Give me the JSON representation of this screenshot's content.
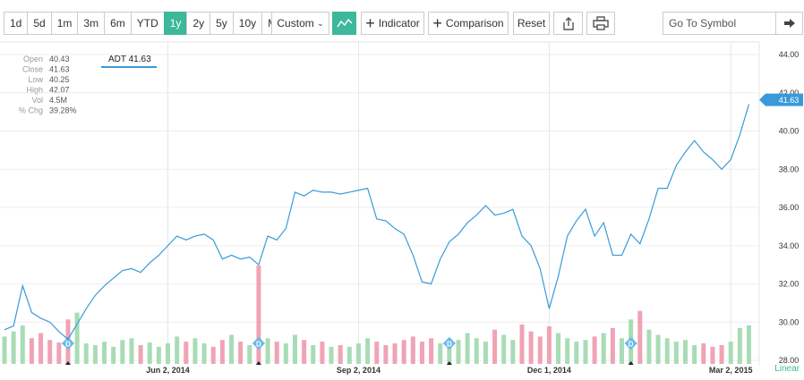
{
  "toolbar": {
    "ranges": [
      "1d",
      "5d",
      "1m",
      "3m",
      "6m",
      "YTD",
      "1y",
      "2y",
      "5y",
      "10y",
      "Max"
    ],
    "active_range": "1y",
    "custom": "Custom",
    "indicator": "Indicator",
    "comparison": "Comparison",
    "reset": "Reset",
    "search_placeholder": "Go To Symbol"
  },
  "info": {
    "symbol": "ADT",
    "last": 41.63,
    "rows": [
      {
        "label": "Open",
        "value": "40.43"
      },
      {
        "label": "Close",
        "value": "41.63"
      },
      {
        "label": "Low",
        "value": "40.25"
      },
      {
        "label": "High",
        "value": "42.07"
      },
      {
        "label": "Vol",
        "value": "4.5M"
      },
      {
        "label": "% Chg",
        "value": "39.28%"
      }
    ]
  },
  "chart_data": {
    "type": "line",
    "scale_label": "Linear",
    "categories": [
      null,
      null,
      null,
      null,
      null,
      null,
      null,
      null,
      null,
      null,
      null,
      null,
      null,
      null,
      null,
      null,
      null,
      null,
      "Jun 2, 2014",
      null,
      null,
      null,
      null,
      null,
      null,
      null,
      null,
      null,
      null,
      null,
      null,
      null,
      null,
      null,
      null,
      null,
      null,
      null,
      null,
      "Sep 2, 2014",
      null,
      null,
      null,
      null,
      null,
      null,
      null,
      null,
      null,
      null,
      null,
      null,
      null,
      null,
      null,
      null,
      null,
      null,
      null,
      null,
      "Dec 1, 2014",
      null,
      null,
      null,
      null,
      null,
      null,
      null,
      null,
      null,
      null,
      null,
      null,
      null,
      null,
      null,
      null,
      null,
      null,
      null,
      "Mar 2, 2015",
      null,
      null
    ],
    "series": [
      {
        "color": "#3a9ad9",
        "values": [
          29.6,
          29.8,
          31.9,
          30.5,
          30.2,
          30.0,
          29.5,
          29.1,
          29.9,
          30.7,
          31.4,
          31.9,
          32.3,
          32.7,
          32.8,
          32.6,
          33.1,
          33.5,
          34.0,
          34.5,
          34.3,
          34.5,
          34.6,
          34.3,
          33.3,
          33.5,
          33.3,
          33.4,
          33.0,
          34.5,
          34.3,
          34.9,
          36.8,
          36.6,
          36.9,
          36.8,
          36.8,
          36.7,
          36.8,
          36.9,
          37.0,
          35.4,
          35.3,
          34.9,
          34.6,
          33.5,
          32.1,
          32.0,
          33.3,
          34.2,
          34.6,
          35.2,
          35.6,
          36.1,
          35.6,
          35.7,
          35.9,
          34.5,
          34.0,
          32.8,
          30.7,
          32.4,
          34.5,
          35.3,
          35.9,
          34.5,
          35.2,
          33.5,
          33.5,
          34.6,
          34.1,
          35.4,
          37.0,
          37.0,
          38.2,
          38.9,
          39.5,
          38.9,
          38.5,
          38.0,
          38.5,
          39.8,
          41.4
        ]
      }
    ],
    "volume": {
      "up_color": "#a8dcb5",
      "down_color": "#f0a3b5",
      "values": [
        3.2,
        3.8,
        4.5,
        3.0,
        3.6,
        2.8,
        2.5,
        5.2,
        6.0,
        2.4,
        2.2,
        2.6,
        2.0,
        2.8,
        3.0,
        2.2,
        2.5,
        2.0,
        2.4,
        3.2,
        2.6,
        3.0,
        2.4,
        2.0,
        2.8,
        3.4,
        2.6,
        2.2,
        11.5,
        3.0,
        2.6,
        2.4,
        3.4,
        2.8,
        2.2,
        2.6,
        2.0,
        2.2,
        2.0,
        2.4,
        3.0,
        2.6,
        2.2,
        2.4,
        2.8,
        3.2,
        2.6,
        3.0,
        2.4,
        2.2,
        2.8,
        3.6,
        3.0,
        2.6,
        4.0,
        3.4,
        2.8,
        4.6,
        3.8,
        3.2,
        4.4,
        3.6,
        3.0,
        2.6,
        2.8,
        3.2,
        3.6,
        4.2,
        3.0,
        5.2,
        6.2,
        4.0,
        3.4,
        3.0,
        2.6,
        2.8,
        2.2,
        2.4,
        2.0,
        2.2,
        2.6,
        4.2,
        4.5
      ]
    },
    "events": [
      {
        "at": 7,
        "label": "D"
      },
      {
        "at": 28,
        "label": "D"
      },
      {
        "at": 49,
        "label": "D"
      },
      {
        "at": 69,
        "label": "D"
      }
    ],
    "ylim": [
      28,
      44
    ],
    "yticks": [
      {
        "value": 28,
        "label": "28.00"
      },
      {
        "value": 30,
        "label": "30.00"
      },
      {
        "value": 32,
        "label": "32.00"
      },
      {
        "value": 34,
        "label": "34.00"
      },
      {
        "value": 36,
        "label": "36.00"
      },
      {
        "value": 38,
        "label": "38.00"
      },
      {
        "value": 40,
        "label": "40.00"
      },
      {
        "value": 42,
        "label": "42.00"
      },
      {
        "value": 44,
        "label": "44.00"
      }
    ],
    "grid": true
  }
}
